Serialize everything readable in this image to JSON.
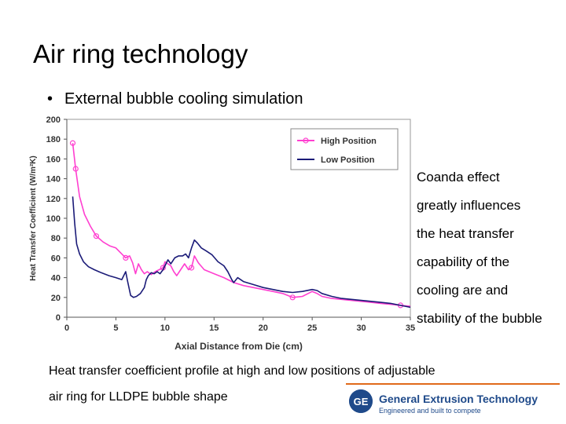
{
  "slide": {
    "title": "Air ring technology",
    "bullet": "External bubble cooling simulation",
    "side_text": [
      "Coanda effect",
      "greatly influences",
      "the heat transfer",
      "capability of the",
      "cooling are and",
      "stability of the bubble"
    ],
    "caption": [
      "Heat transfer coefficient profile at high and low positions of adjustable",
      "air ring for LLDPE bubble shape"
    ]
  },
  "logo": {
    "name": "General Extrusion Technology",
    "tagline": "Engineered and built to compete",
    "emblem_text": "GE",
    "color": "#1f4a8a",
    "line_color": "#e06a1a"
  },
  "chart_data": {
    "type": "line",
    "title": "",
    "xlabel": "Axial Distance from Die (cm)",
    "ylabel": "Heat Transfer Coefficient (W/m²K)",
    "xlim": [
      0,
      35
    ],
    "ylim": [
      0,
      200
    ],
    "x_ticks": [
      0,
      5,
      10,
      15,
      20,
      25,
      30,
      35
    ],
    "y_ticks": [
      0,
      20,
      40,
      60,
      80,
      100,
      120,
      140,
      160,
      180,
      200
    ],
    "legend_position": "top-right",
    "series": [
      {
        "name": "High Position",
        "color": "#ff3fd0",
        "markers": true,
        "x": [
          0.6,
          0.9,
          1.3,
          1.8,
          2.4,
          3.0,
          3.7,
          4.4,
          5.0,
          5.6,
          6.0,
          6.4,
          6.7,
          7.0,
          7.3,
          7.6,
          7.9,
          8.2,
          8.6,
          9.0,
          9.4,
          9.8,
          10.0,
          10.3,
          10.6,
          10.9,
          11.2,
          11.6,
          12.0,
          12.4,
          12.7,
          13.0,
          13.4,
          14.0,
          15.0,
          16.0,
          17.0,
          18.0,
          19.0,
          20.0,
          21.0,
          22.0,
          23.0,
          24.0,
          25.0,
          25.5,
          26.0,
          27.0,
          28.0,
          29.0,
          30.0,
          31.0,
          32.0,
          33.0,
          34.0,
          35.0
        ],
        "values": [
          176,
          150,
          122,
          104,
          92,
          82,
          76,
          72,
          70,
          64,
          60,
          62,
          55,
          44,
          54,
          48,
          44,
          46,
          43,
          46,
          48,
          50,
          56,
          54,
          52,
          46,
          42,
          48,
          54,
          48,
          50,
          62,
          55,
          48,
          44,
          40,
          35,
          32,
          30,
          28,
          26,
          24,
          20,
          21,
          26,
          24,
          21,
          19,
          18,
          17,
          16,
          15,
          14,
          13,
          12,
          11
        ]
      },
      {
        "name": "Low Position",
        "color": "#1b1b78",
        "markers": false,
        "x": [
          0.6,
          0.8,
          1.0,
          1.3,
          1.7,
          2.2,
          2.8,
          3.5,
          4.3,
          5.0,
          5.6,
          6.0,
          6.2,
          6.5,
          6.8,
          7.1,
          7.5,
          7.9,
          8.1,
          8.3,
          8.6,
          8.9,
          9.2,
          9.5,
          9.8,
          10.0,
          10.3,
          10.6,
          11.0,
          11.4,
          11.8,
          12.1,
          12.4,
          12.7,
          13.0,
          13.3,
          13.7,
          14.2,
          14.8,
          15.4,
          16.0,
          16.4,
          16.8,
          17.0,
          17.4,
          18.0,
          19.0,
          20.0,
          21.0,
          22.0,
          23.0,
          24.0,
          25.0,
          25.5,
          26.0,
          27.0,
          28.0,
          29.0,
          30.0,
          31.0,
          32.0,
          33.0,
          34.0,
          35.0
        ],
        "values": [
          122,
          95,
          74,
          64,
          56,
          51,
          48,
          45,
          42,
          40,
          38,
          46,
          36,
          22,
          20,
          21,
          24,
          30,
          38,
          42,
          45,
          44,
          46,
          44,
          48,
          52,
          58,
          54,
          60,
          62,
          62,
          64,
          60,
          70,
          78,
          75,
          70,
          67,
          63,
          56,
          52,
          46,
          38,
          35,
          40,
          36,
          33,
          30,
          28,
          26,
          25,
          26,
          28,
          27,
          24,
          21,
          19,
          18,
          17,
          16,
          15,
          14,
          12,
          10
        ]
      }
    ]
  }
}
